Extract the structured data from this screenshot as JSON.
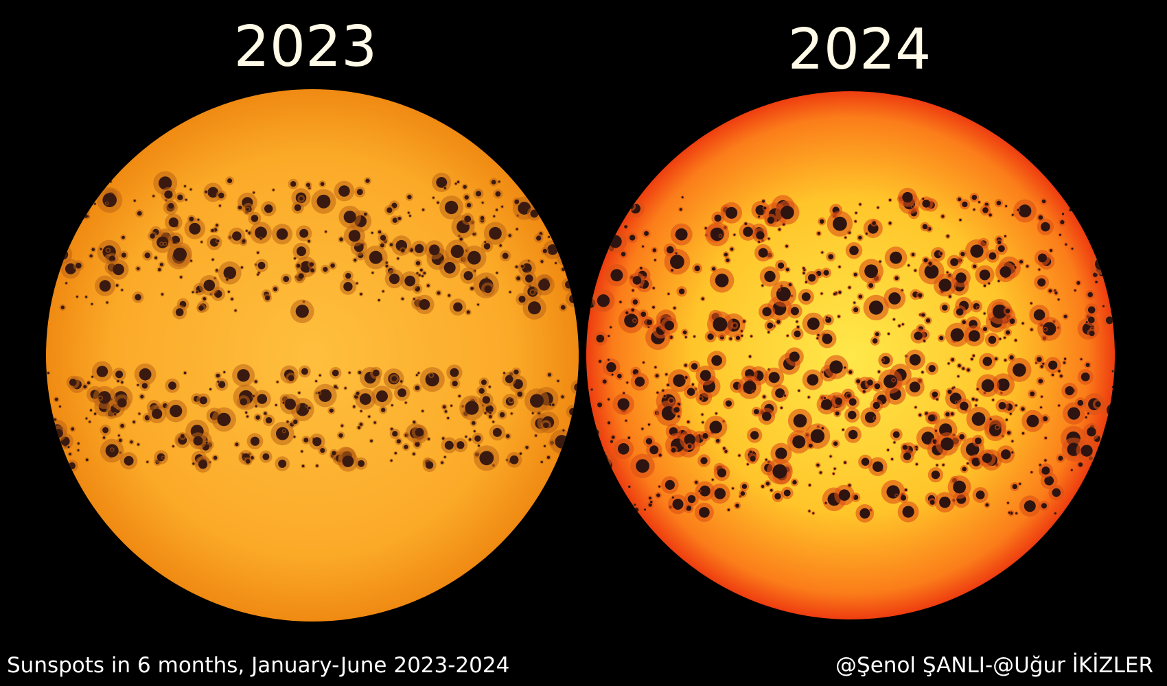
{
  "images": [
    {
      "year": "2023"
    },
    {
      "year": "2024"
    }
  ],
  "caption": "Sunspots in 6 months, January-June 2023-2024",
  "credit": "@Şenol ŞANLI-@Uğur İKİZLER"
}
